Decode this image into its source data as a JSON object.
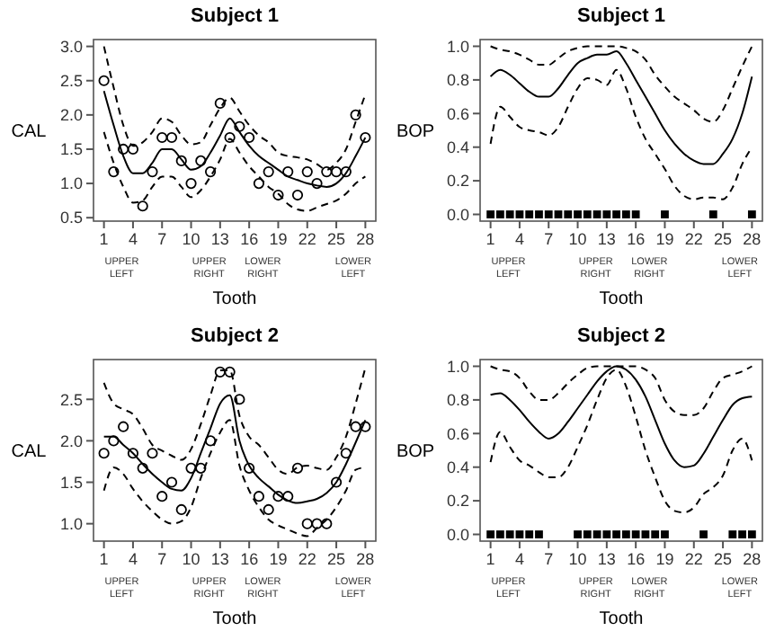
{
  "chart_data": [
    {
      "type": "line",
      "title": "Subject 1",
      "xlabel": "Tooth",
      "ylabel": "CAL",
      "xlim": [
        -0.08,
        29.08
      ],
      "ylim": [
        0.45,
        3.1
      ],
      "xticks": [
        1,
        4,
        7,
        10,
        13,
        16,
        19,
        22,
        25,
        28
      ],
      "yticks": [
        {
          "value": 0.5,
          "label": "0.5"
        },
        {
          "value": 1,
          "label": "1.0"
        },
        1.5,
        {
          "value": 2,
          "label": "2.0"
        },
        2.5,
        {
          "value": 3,
          "label": "3.0"
        }
      ],
      "annotations": [
        "UPPER LEFT",
        "UPPER RIGHT",
        "LOWER RIGHT",
        "LOWER LEFT"
      ],
      "x": [
        1,
        2,
        3,
        4,
        5,
        6,
        7,
        8,
        9,
        10,
        11,
        12,
        13,
        14,
        15,
        16,
        17,
        18,
        19,
        20,
        21,
        22,
        23,
        24,
        25,
        26,
        27,
        28
      ],
      "series": [
        {
          "type": "scatter",
          "marker": "circle",
          "color": "#000000",
          "values": [
            2.5,
            1.17,
            1.5,
            1.5,
            0.67,
            1.17,
            1.67,
            1.67,
            1.33,
            1.0,
            1.33,
            1.17,
            2.17,
            1.67,
            1.83,
            1.67,
            1.0,
            1.17,
            0.83,
            1.17,
            0.83,
            1.17,
            1.0,
            1.17,
            1.17,
            1.17,
            2.0,
            1.67
          ]
        },
        {
          "type": "line",
          "line_style": "solid",
          "color": "#000000",
          "values": [
            2.35,
            1.85,
            1.4,
            1.15,
            1.15,
            1.3,
            1.5,
            1.5,
            1.35,
            1.2,
            1.25,
            1.45,
            1.7,
            1.95,
            1.75,
            1.55,
            1.4,
            1.3,
            1.2,
            1.1,
            1.05,
            1.0,
            0.97,
            0.95,
            1.0,
            1.15,
            1.4,
            1.67
          ]
        },
        {
          "type": "line",
          "line_style": "dashed",
          "color": "#000000",
          "values": [
            3.0,
            2.4,
            1.85,
            1.55,
            1.6,
            1.75,
            1.95,
            1.9,
            1.7,
            1.57,
            1.6,
            1.85,
            2.1,
            2.25,
            2.05,
            1.85,
            1.7,
            1.6,
            1.45,
            1.4,
            1.38,
            1.35,
            1.28,
            1.2,
            1.3,
            1.5,
            1.9,
            2.3
          ]
        },
        {
          "type": "line",
          "line_style": "dashed",
          "color": "#000000",
          "values": [
            1.75,
            1.3,
            0.95,
            0.72,
            0.75,
            0.95,
            1.1,
            1.1,
            0.95,
            0.8,
            0.9,
            1.1,
            1.35,
            1.65,
            1.45,
            1.25,
            1.1,
            0.95,
            0.85,
            0.7,
            0.62,
            0.6,
            0.65,
            0.7,
            0.75,
            0.85,
            1.0,
            1.1
          ]
        }
      ]
    },
    {
      "type": "line",
      "title": "Subject 1",
      "xlabel": "Tooth",
      "ylabel": "BOP",
      "xlim": [
        -0.08,
        29.08
      ],
      "ylim": [
        -0.04,
        1.04
      ],
      "xticks": [
        1,
        4,
        7,
        10,
        13,
        16,
        19,
        22,
        25,
        28
      ],
      "yticks": [
        {
          "value": 0,
          "label": "0.0"
        },
        0.2,
        0.4,
        0.6,
        0.8,
        {
          "value": 1,
          "label": "1.0"
        }
      ],
      "annotations": [
        "UPPER LEFT",
        "UPPER RIGHT",
        "LOWER RIGHT",
        "LOWER LEFT"
      ],
      "x": [
        1,
        2,
        3,
        4,
        5,
        6,
        7,
        8,
        9,
        10,
        11,
        12,
        13,
        14,
        15,
        16,
        17,
        18,
        19,
        20,
        21,
        22,
        23,
        24,
        25,
        26,
        27,
        28
      ],
      "series": [
        {
          "type": "scatter",
          "marker": "square",
          "color": "#000000",
          "x": [
            1,
            2,
            3,
            4,
            5,
            6,
            7,
            8,
            9,
            10,
            11,
            12,
            13,
            14,
            15,
            16,
            19,
            24,
            28
          ],
          "values": [
            0,
            0,
            0,
            0,
            0,
            0,
            0,
            0,
            0,
            0,
            0,
            0,
            0,
            0,
            0,
            0,
            0,
            0,
            0
          ]
        },
        {
          "type": "line",
          "line_style": "solid",
          "color": "#000000",
          "values": [
            0.82,
            0.86,
            0.83,
            0.78,
            0.73,
            0.7,
            0.7,
            0.75,
            0.83,
            0.9,
            0.93,
            0.95,
            0.95,
            0.97,
            0.9,
            0.8,
            0.7,
            0.6,
            0.5,
            0.42,
            0.36,
            0.32,
            0.3,
            0.3,
            0.36,
            0.45,
            0.6,
            0.82
          ]
        },
        {
          "type": "line",
          "line_style": "dashed",
          "color": "#000000",
          "values": [
            1.0,
            0.98,
            0.97,
            0.95,
            0.92,
            0.89,
            0.89,
            0.93,
            0.97,
            0.99,
            1.0,
            1.0,
            1.0,
            1.0,
            0.99,
            0.97,
            0.92,
            0.83,
            0.76,
            0.7,
            0.66,
            0.62,
            0.57,
            0.55,
            0.62,
            0.75,
            0.88,
            1.0
          ]
        },
        {
          "type": "line",
          "line_style": "dashed",
          "color": "#000000",
          "values": [
            0.42,
            0.64,
            0.58,
            0.52,
            0.5,
            0.49,
            0.47,
            0.52,
            0.64,
            0.75,
            0.81,
            0.8,
            0.77,
            0.86,
            0.75,
            0.58,
            0.45,
            0.36,
            0.27,
            0.17,
            0.11,
            0.09,
            0.1,
            0.1,
            0.09,
            0.16,
            0.3,
            0.4
          ]
        }
      ]
    },
    {
      "type": "line",
      "title": "Subject 2",
      "xlabel": "Tooth",
      "ylabel": "CAL",
      "xlim": [
        -0.08,
        29.08
      ],
      "ylim": [
        0.79,
        2.98
      ],
      "xticks": [
        1,
        4,
        7,
        10,
        13,
        16,
        19,
        22,
        25,
        28
      ],
      "yticks": [
        {
          "value": 1,
          "label": "1.0"
        },
        1.5,
        {
          "value": 2,
          "label": "2.0"
        },
        2.5
      ],
      "annotations": [
        "UPPER LEFT",
        "UPPER RIGHT",
        "LOWER RIGHT",
        "LOWER LEFT"
      ],
      "x": [
        1,
        2,
        3,
        4,
        5,
        6,
        7,
        8,
        9,
        10,
        11,
        12,
        13,
        14,
        15,
        16,
        17,
        18,
        19,
        20,
        21,
        22,
        23,
        24,
        25,
        26,
        27,
        28
      ],
      "series": [
        {
          "type": "scatter",
          "marker": "circle",
          "color": "#000000",
          "values": [
            1.85,
            2.0,
            2.17,
            1.85,
            1.67,
            1.85,
            1.33,
            1.5,
            1.17,
            1.67,
            1.67,
            2.0,
            2.83,
            2.83,
            2.5,
            1.67,
            1.33,
            1.17,
            1.33,
            1.33,
            1.67,
            1.0,
            1.0,
            1.0,
            1.5,
            1.85,
            2.17,
            2.17
          ]
        },
        {
          "type": "line",
          "line_style": "solid",
          "color": "#000000",
          "values": [
            2.05,
            2.05,
            1.95,
            1.85,
            1.72,
            1.6,
            1.5,
            1.42,
            1.4,
            1.55,
            1.85,
            2.15,
            2.45,
            2.55,
            2.0,
            1.7,
            1.55,
            1.45,
            1.35,
            1.28,
            1.25,
            1.27,
            1.3,
            1.37,
            1.5,
            1.72,
            1.98,
            2.25
          ]
        },
        {
          "type": "line",
          "line_style": "dashed",
          "color": "#000000",
          "values": [
            2.7,
            2.45,
            2.38,
            2.32,
            2.15,
            1.95,
            1.88,
            1.82,
            1.77,
            1.9,
            2.2,
            2.55,
            2.85,
            2.85,
            2.3,
            2.05,
            1.95,
            1.8,
            1.65,
            1.6,
            1.68,
            1.7,
            1.67,
            1.65,
            1.8,
            2.05,
            2.45,
            2.88
          ]
        },
        {
          "type": "line",
          "line_style": "dashed",
          "color": "#000000",
          "values": [
            1.4,
            1.68,
            1.6,
            1.42,
            1.27,
            1.15,
            1.05,
            1.0,
            1.03,
            1.2,
            1.55,
            1.85,
            2.1,
            2.25,
            1.7,
            1.4,
            1.2,
            1.05,
            0.98,
            0.93,
            0.88,
            0.85,
            0.95,
            1.05,
            1.2,
            1.4,
            1.65,
            1.68
          ]
        }
      ]
    },
    {
      "type": "line",
      "title": "Subject 2",
      "xlabel": "Tooth",
      "ylabel": "BOP",
      "xlim": [
        -0.08,
        29.08
      ],
      "ylim": [
        -0.04,
        1.04
      ],
      "xticks": [
        1,
        4,
        7,
        10,
        13,
        16,
        19,
        22,
        25,
        28
      ],
      "yticks": [
        {
          "value": 0,
          "label": "0.0"
        },
        0.2,
        0.4,
        0.6,
        0.8,
        {
          "value": 1,
          "label": "1.0"
        }
      ],
      "annotations": [
        "UPPER LEFT",
        "UPPER RIGHT",
        "LOWER RIGHT",
        "LOWER LEFT"
      ],
      "x": [
        1,
        2,
        3,
        4,
        5,
        6,
        7,
        8,
        9,
        10,
        11,
        12,
        13,
        14,
        15,
        16,
        17,
        18,
        19,
        20,
        21,
        22,
        23,
        24,
        25,
        26,
        27,
        28
      ],
      "series": [
        {
          "type": "scatter",
          "marker": "square",
          "color": "#000000",
          "x": [
            1,
            2,
            3,
            4,
            5,
            6,
            10,
            11,
            12,
            13,
            14,
            15,
            16,
            17,
            18,
            19,
            23,
            26,
            27,
            28
          ],
          "values": [
            0,
            0,
            0,
            0,
            0,
            0,
            0,
            0,
            0,
            0,
            0,
            0,
            0,
            0,
            0,
            0,
            0,
            0,
            0,
            0
          ]
        },
        {
          "type": "line",
          "line_style": "solid",
          "color": "#000000",
          "values": [
            0.83,
            0.84,
            0.8,
            0.74,
            0.67,
            0.61,
            0.57,
            0.6,
            0.67,
            0.75,
            0.83,
            0.91,
            0.97,
            1.0,
            0.98,
            0.92,
            0.82,
            0.68,
            0.54,
            0.44,
            0.4,
            0.41,
            0.48,
            0.58,
            0.68,
            0.77,
            0.81,
            0.82
          ]
        },
        {
          "type": "line",
          "line_style": "dashed",
          "color": "#000000",
          "values": [
            1.0,
            0.98,
            0.97,
            0.93,
            0.85,
            0.8,
            0.8,
            0.84,
            0.9,
            0.95,
            0.99,
            1.0,
            1.0,
            1.0,
            1.0,
            1.0,
            0.98,
            0.93,
            0.8,
            0.73,
            0.71,
            0.71,
            0.75,
            0.85,
            0.93,
            0.95,
            0.97,
            1.0
          ]
        },
        {
          "type": "line",
          "line_style": "dashed",
          "color": "#000000",
          "values": [
            0.43,
            0.61,
            0.52,
            0.44,
            0.41,
            0.37,
            0.34,
            0.34,
            0.4,
            0.52,
            0.65,
            0.8,
            0.93,
            0.98,
            0.88,
            0.7,
            0.5,
            0.34,
            0.2,
            0.14,
            0.13,
            0.16,
            0.24,
            0.28,
            0.35,
            0.5,
            0.57,
            0.44
          ]
        }
      ]
    }
  ]
}
